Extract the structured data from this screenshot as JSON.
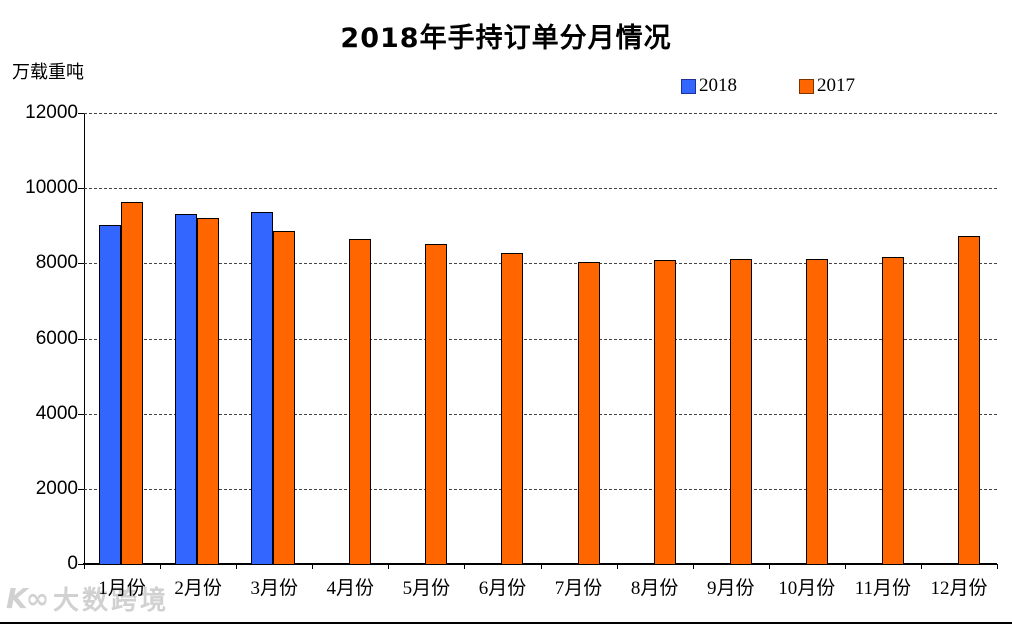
{
  "title": "2018年手持订单分月情况",
  "unit_label": "万载重吨",
  "legend": [
    {
      "label": "2018",
      "color": "#3366FF",
      "border": "#1F3096"
    },
    {
      "label": "2017",
      "color": "#FF6600",
      "border": "#7A3500"
    }
  ],
  "watermark": {
    "logo": "K∞",
    "text": "大数跨境"
  },
  "chart_data": {
    "type": "bar",
    "title": "2018年手持订单分月情况",
    "xlabel": "",
    "ylabel": "万载重吨",
    "categories": [
      "1月份",
      "2月份",
      "3月份",
      "4月份",
      "5月份",
      "6月份",
      "7月份",
      "8月份",
      "9月份",
      "10月份",
      "11月份",
      "12月份"
    ],
    "series": [
      {
        "name": "2018",
        "color": "#3366FF",
        "values": [
          9025,
          9304,
          9369,
          null,
          null,
          null,
          null,
          null,
          null,
          null,
          null,
          null
        ]
      },
      {
        "name": "2017",
        "color": "#FF6600",
        "values": [
          9619,
          9207,
          8864,
          8652,
          8517,
          8284,
          8035,
          8088,
          8123,
          8126,
          8166,
          8723
        ]
      }
    ],
    "ylim": [
      0,
      12000
    ],
    "yticks": [
      0,
      2000,
      4000,
      6000,
      8000,
      10000,
      12000
    ],
    "grid": "horizontal-dashed",
    "legend_position": "top-right"
  }
}
